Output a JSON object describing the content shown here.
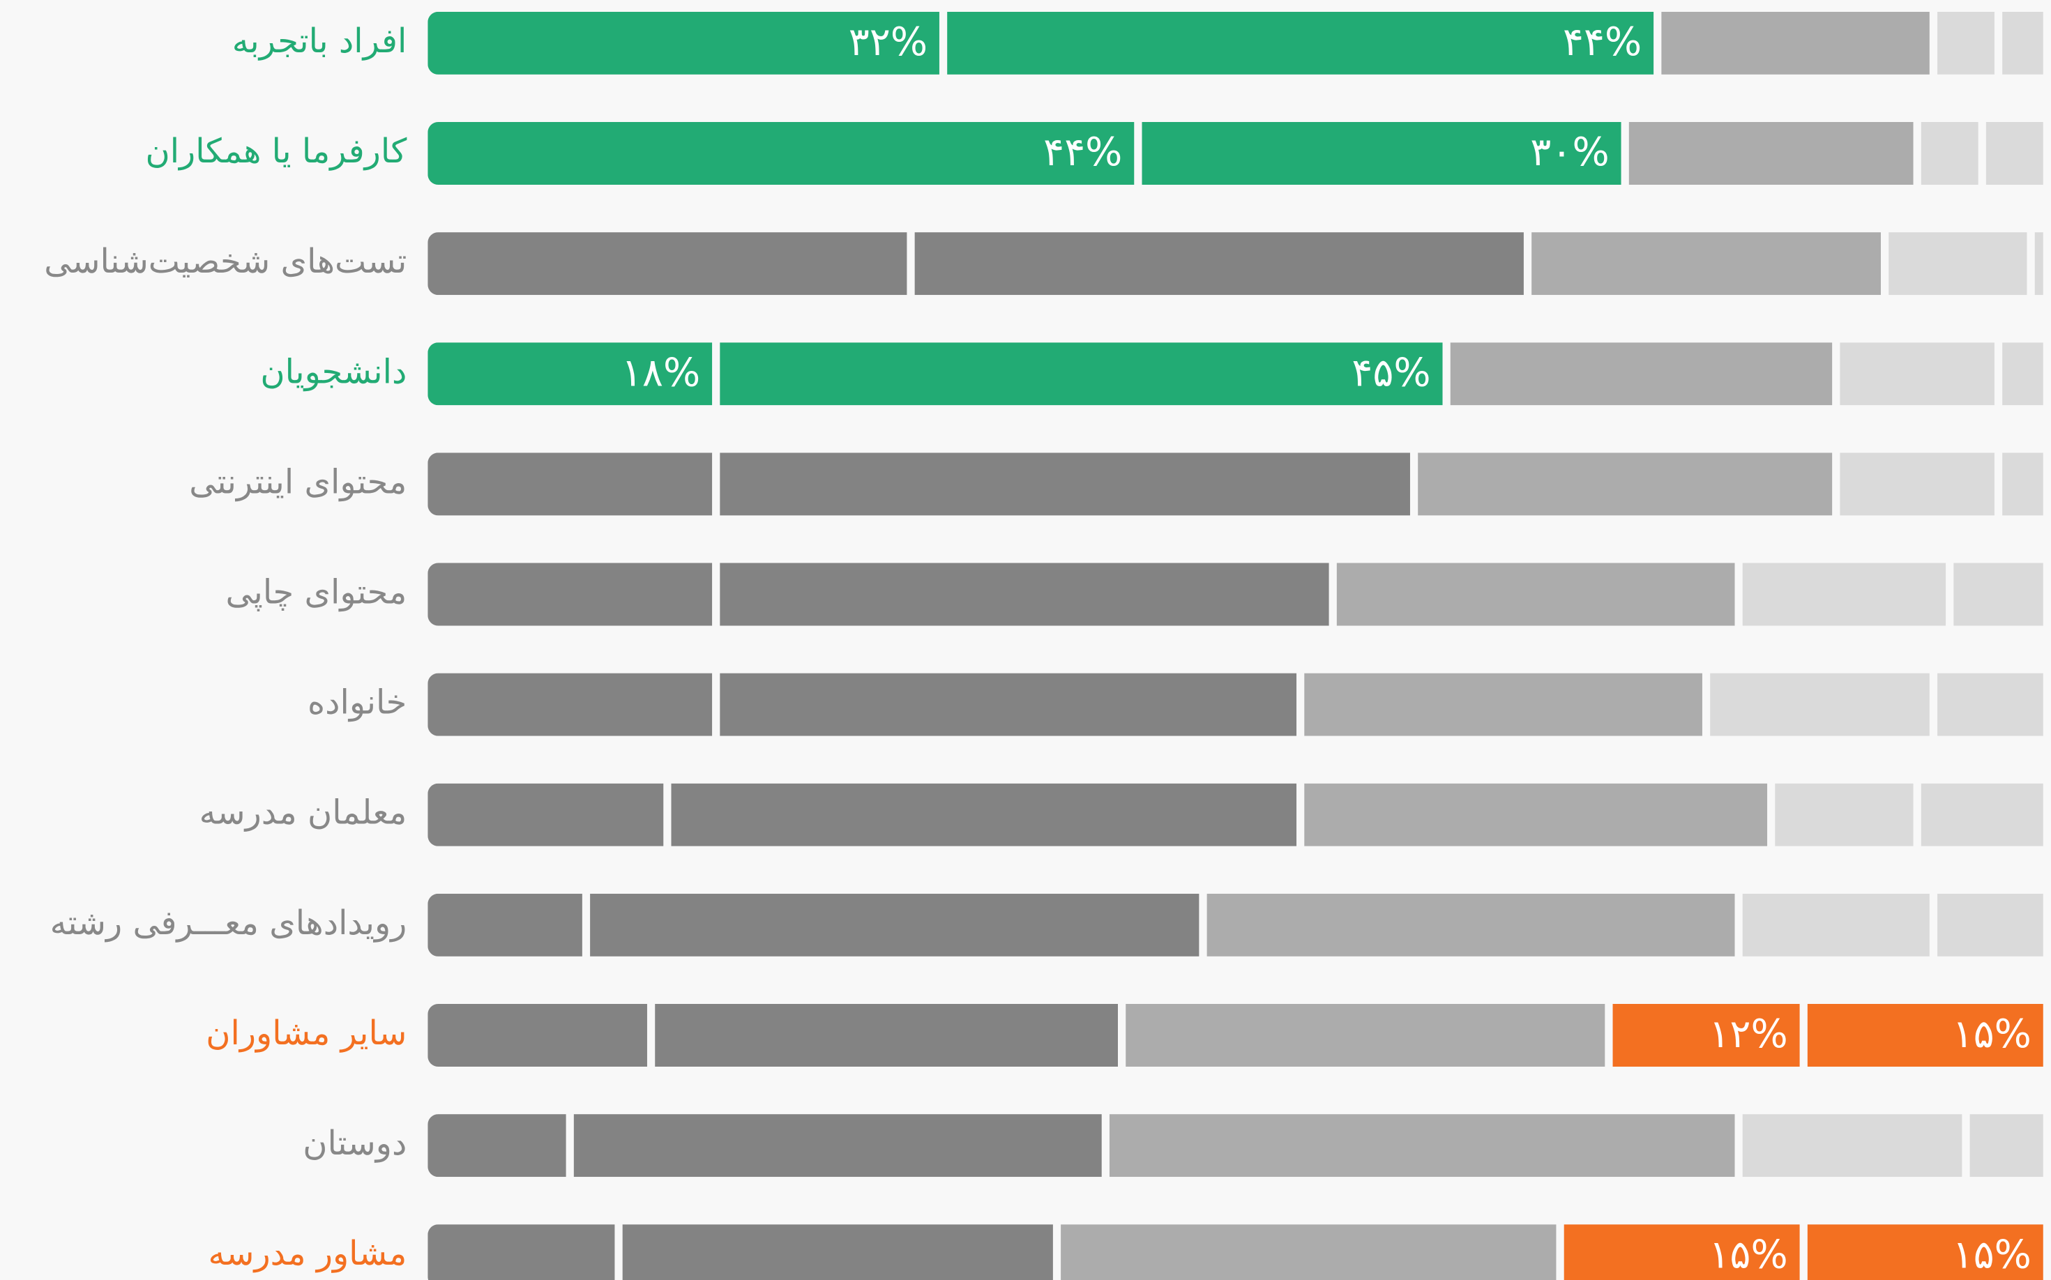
{
  "chart_data": {
    "type": "stacked-barh",
    "xlim": [
      0,
      100
    ],
    "categories": [
      "افراد باتجربه",
      "کارفرما یا همکاران",
      "تست‌های شخصیت‌شناسی",
      "دانشجویان",
      "محتوای اینترنتی",
      "محتوای چاپی",
      "خانواده",
      "معلمان مدرسه",
      "رویدادهای معـــرفی رشته",
      "سایر مشاوران",
      "دوستان",
      "مشاور مدرسه"
    ],
    "category_colors": [
      "#22ab74",
      "#22ab74",
      "#888888",
      "#22ab74",
      "#888888",
      "#888888",
      "#888888",
      "#888888",
      "#888888",
      "#f37021",
      "#888888",
      "#f37021"
    ],
    "series": [
      {
        "color": "#838383",
        "highlight_color": "#22ab74",
        "highlighted": [
          0,
          1,
          3
        ],
        "values": [
          32,
          44,
          30,
          18,
          18,
          18,
          18,
          15,
          10,
          14,
          9,
          12
        ],
        "value_labels": [
          "۳۲%",
          "۴۴%",
          null,
          "۱۸%",
          null,
          null,
          null,
          null,
          null,
          null,
          null,
          null
        ]
      },
      {
        "color": "#838383",
        "highlight_color": "#22ab74",
        "highlighted": [
          0,
          1,
          3
        ],
        "values": [
          44,
          30,
          38,
          45,
          43,
          38,
          36,
          39,
          38,
          29,
          33,
          27
        ],
        "value_labels": [
          "۴۴%",
          "۳۰%",
          null,
          "۴۵%",
          null,
          null,
          null,
          null,
          null,
          null,
          null,
          null
        ]
      },
      {
        "color": "#acacac",
        "highlight_color": "#f37021",
        "highlighted": [],
        "values": [
          17,
          18,
          22,
          24,
          26,
          25,
          25,
          29,
          33,
          30,
          39,
          31
        ],
        "value_labels": [
          null,
          null,
          null,
          null,
          null,
          null,
          null,
          null,
          null,
          null,
          null,
          null
        ]
      },
      {
        "color": "#dadada",
        "highlight_color": "#f37021",
        "highlighted": [
          9,
          11
        ],
        "values": [
          4,
          4,
          9,
          10,
          10,
          13,
          14,
          9,
          12,
          12,
          14,
          15
        ],
        "value_labels": [
          null,
          null,
          null,
          null,
          null,
          null,
          null,
          null,
          null,
          "۱۲%",
          null,
          "۱۵%"
        ]
      },
      {
        "color": "#dadada",
        "highlight_color": "#f37021",
        "highlighted": [
          9,
          11
        ],
        "values": [
          3,
          4,
          1,
          3,
          3,
          6,
          7,
          8,
          7,
          15,
          5,
          15
        ],
        "value_labels": [
          null,
          null,
          null,
          null,
          null,
          null,
          null,
          null,
          null,
          "۱۵%",
          null,
          "۱۵%"
        ]
      }
    ]
  }
}
